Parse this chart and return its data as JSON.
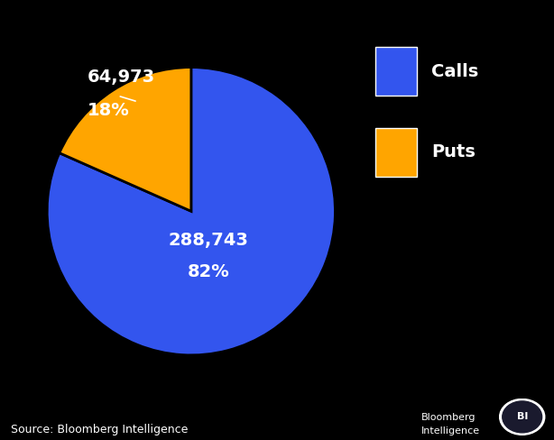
{
  "calls_value": 288743,
  "puts_value": 64973,
  "calls_pct": 82,
  "puts_pct": 18,
  "calls_label_line1": "288,743",
  "calls_label_line2": "82%",
  "puts_label_line1": "64,973",
  "puts_label_line2": "18%",
  "calls_color": "#3355EE",
  "puts_color": "#FFA500",
  "background_color": "#000000",
  "text_color": "#FFFFFF",
  "legend_calls": "Calls",
  "legend_puts": "Puts",
  "source_text": "Source: Bloomberg Intelligence",
  "bi_text_line1": "Bloomberg",
  "bi_text_line2": "Intelligence",
  "wedge_edge_color": "#000000",
  "wedge_linewidth": 2.0
}
